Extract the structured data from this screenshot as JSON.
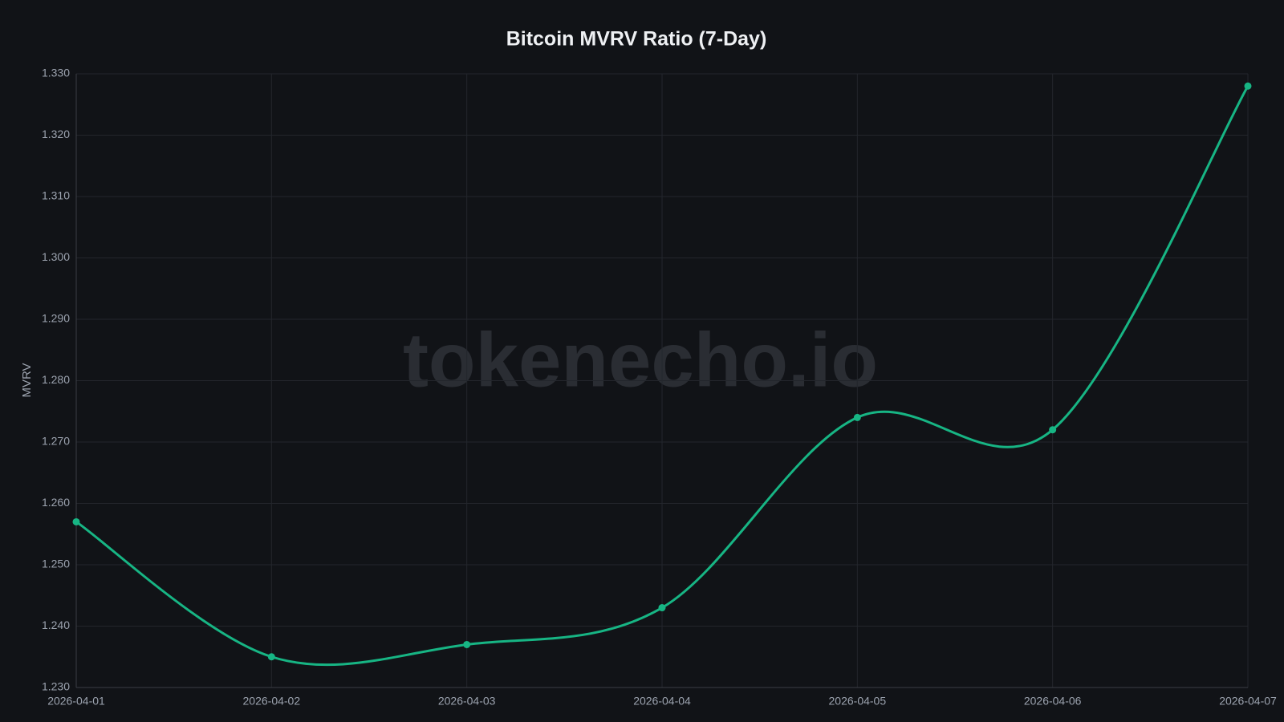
{
  "chart_data": {
    "type": "line",
    "title": "Bitcoin MVRV Ratio (7-Day)",
    "watermark": "tokenecho.io",
    "y_label": "MVRV",
    "x": [
      "2026-04-01",
      "2026-04-02",
      "2026-04-03",
      "2026-04-04",
      "2026-04-05",
      "2026-04-06",
      "2026-04-07"
    ],
    "series": [
      {
        "name": "MVRV",
        "color": "#17b584",
        "values": [
          1.257,
          1.235,
          1.237,
          1.243,
          1.274,
          1.272,
          1.328
        ]
      }
    ],
    "ylim": [
      1.23,
      1.33
    ],
    "yticks": [
      {
        "value": 1.23,
        "label": "1.230"
      },
      {
        "value": 1.24,
        "label": "1.240"
      },
      {
        "value": 1.25,
        "label": "1.250"
      },
      {
        "value": 1.26,
        "label": "1.260"
      },
      {
        "value": 1.27,
        "label": "1.270"
      },
      {
        "value": 1.28,
        "label": "1.280"
      },
      {
        "value": 1.29,
        "label": "1.290"
      },
      {
        "value": 1.3,
        "label": "1.300"
      },
      {
        "value": 1.31,
        "label": "1.310"
      },
      {
        "value": 1.32,
        "label": "1.320"
      },
      {
        "value": 1.33,
        "label": "1.330"
      }
    ],
    "grid": true,
    "legend": false
  }
}
